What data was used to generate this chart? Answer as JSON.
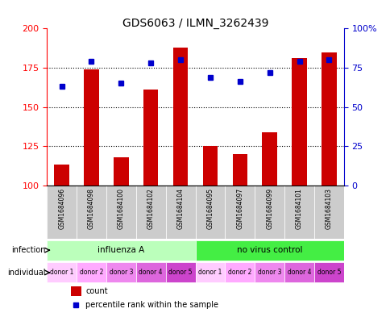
{
  "title": "GDS6063 / ILMN_3262439",
  "samples": [
    "GSM1684096",
    "GSM1684098",
    "GSM1684100",
    "GSM1684102",
    "GSM1684104",
    "GSM1684095",
    "GSM1684097",
    "GSM1684099",
    "GSM1684101",
    "GSM1684103"
  ],
  "bar_values": [
    113,
    174,
    118,
    161,
    188,
    125,
    120,
    134,
    181,
    185
  ],
  "dot_values": [
    63,
    79,
    65,
    78,
    80,
    69,
    66,
    72,
    79,
    80
  ],
  "ylim_left": [
    100,
    200
  ],
  "ylim_right": [
    0,
    100
  ],
  "yticks_left": [
    100,
    125,
    150,
    175,
    200
  ],
  "yticks_right": [
    0,
    25,
    50,
    75,
    100
  ],
  "yticklabels_right": [
    "0",
    "25",
    "50",
    "75",
    "100%"
  ],
  "bar_color": "#cc0000",
  "dot_color": "#0000cc",
  "background_plot": "#ffffff",
  "infection_groups": [
    {
      "label": "influenza A",
      "start": 0,
      "end": 5,
      "color": "#bbffbb"
    },
    {
      "label": "no virus control",
      "start": 5,
      "end": 10,
      "color": "#44ee44"
    }
  ],
  "individual_labels": [
    "donor 1",
    "donor 2",
    "donor 3",
    "donor 4",
    "donor 5",
    "donor 1",
    "donor 2",
    "donor 3",
    "donor 4",
    "donor 5"
  ],
  "indiv_colors": [
    "#ffccff",
    "#ffaaff",
    "#ee88ee",
    "#dd66dd",
    "#cc44cc",
    "#ffccff",
    "#ffaaff",
    "#ee88ee",
    "#dd66dd",
    "#cc44cc"
  ],
  "sample_bg_color": "#cccccc",
  "legend_count_color": "#cc0000",
  "legend_dot_color": "#0000cc"
}
